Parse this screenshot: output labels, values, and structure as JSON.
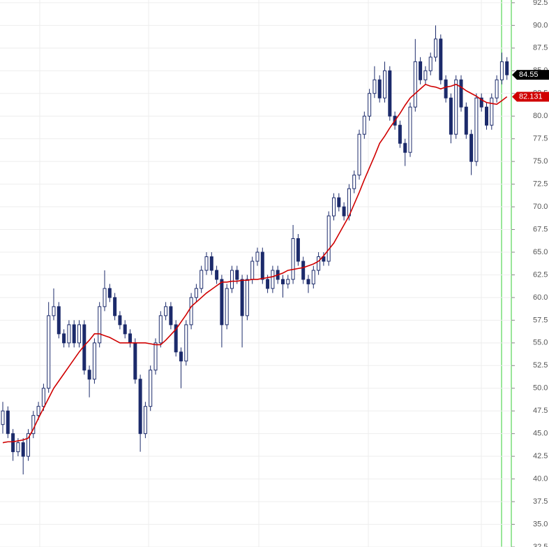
{
  "chart_data": {
    "type": "candlestick",
    "candle_color": "#1c2b6b",
    "open": [
      46,
      47.5,
      45,
      43,
      44,
      42.5,
      45,
      47,
      48,
      50,
      58,
      59,
      56,
      55,
      57,
      55,
      57,
      52,
      51,
      55,
      59,
      61,
      60,
      58,
      57,
      56,
      55,
      51,
      45,
      48,
      52,
      55,
      58,
      59,
      57,
      54,
      53,
      57,
      60,
      61,
      63,
      64.5,
      63,
      62,
      57,
      61,
      63,
      62,
      58,
      62,
      64,
      65,
      62,
      61,
      63,
      62,
      61.5,
      62,
      66.5,
      64,
      62,
      61.5,
      63,
      64.5,
      64,
      69,
      71,
      70,
      69,
      72,
      73.5,
      78,
      80,
      82.5,
      84,
      82,
      85,
      80,
      79,
      77,
      76,
      81,
      86,
      84,
      85,
      86.5,
      88.5,
      84,
      82,
      78,
      84,
      81,
      78,
      75,
      82,
      81,
      79,
      82,
      84,
      86
    ],
    "high": [
      48.5,
      48,
      45.5,
      44.5,
      44.5,
      45.5,
      47.5,
      48.5,
      50.5,
      59.5,
      61,
      59.5,
      56.5,
      57.5,
      57.5,
      57.5,
      57.5,
      52.5,
      55.5,
      59.5,
      63,
      61.5,
      60.5,
      58.5,
      57.5,
      56.5,
      55.5,
      51.5,
      48.5,
      52.5,
      55.5,
      58.5,
      59.5,
      59.5,
      57.5,
      54.5,
      57.5,
      60.5,
      61.5,
      63.5,
      65,
      65,
      63.5,
      62.5,
      61.5,
      63.5,
      63.5,
      62.5,
      62.5,
      64.5,
      65.5,
      65.5,
      62.5,
      63.5,
      63.5,
      62.5,
      62.5,
      68,
      67,
      64.5,
      62.5,
      63.5,
      65,
      65,
      69.5,
      71.5,
      71.5,
      70.5,
      72.5,
      74,
      78.5,
      80.5,
      83,
      85.5,
      84.5,
      86,
      85.5,
      80.5,
      79.5,
      77.5,
      81.5,
      88.5,
      86.5,
      85.5,
      87,
      90,
      89,
      84.5,
      82.5,
      84.5,
      84.5,
      81.5,
      78.5,
      82.5,
      82.5,
      81.5,
      82.5,
      84.5,
      87,
      86.5
    ],
    "low": [
      45,
      44.5,
      42,
      42.5,
      40.5,
      42,
      44.5,
      46.5,
      47.5,
      49.5,
      57.5,
      55.5,
      54.5,
      54.5,
      54.5,
      54.5,
      51.5,
      49,
      50.5,
      54.5,
      58.5,
      59.5,
      57.5,
      56.5,
      55.5,
      54.5,
      50.5,
      43,
      44.5,
      47.5,
      51.5,
      54.5,
      57.5,
      56.5,
      53.5,
      50,
      52.5,
      56.5,
      59.5,
      60.5,
      62.5,
      62.5,
      61.5,
      54.5,
      56.5,
      60.5,
      61.5,
      54.5,
      57.5,
      61.5,
      63.5,
      61.5,
      60.5,
      60.5,
      61.5,
      60,
      61,
      61.5,
      63.5,
      61.5,
      60.5,
      61,
      62.5,
      63.5,
      63.5,
      68.5,
      69.5,
      68.5,
      68.5,
      71.5,
      73,
      77.5,
      79.5,
      82,
      81.5,
      81.5,
      79.5,
      78.5,
      76.5,
      74.5,
      75.5,
      80.5,
      83.5,
      83.5,
      84.5,
      86,
      83.5,
      81.5,
      77,
      77.5,
      80.5,
      77.5,
      73.5,
      74.5,
      80.5,
      78.5,
      78.5,
      81.5,
      83.5,
      84
    ],
    "close": [
      47.5,
      45,
      43,
      44,
      42.5,
      45,
      47,
      48,
      50,
      58,
      59,
      56,
      55,
      57,
      55,
      57,
      52,
      51,
      55,
      59,
      61,
      60,
      58,
      57,
      56,
      55,
      51,
      45,
      48,
      52,
      55,
      58,
      59,
      57,
      54,
      53,
      57,
      60,
      61,
      63,
      64.5,
      63,
      62,
      57,
      61,
      63,
      62,
      58,
      62,
      64,
      65,
      62,
      61,
      63,
      62,
      61.5,
      62,
      66.5,
      64,
      62,
      61.5,
      63,
      64.5,
      64,
      69,
      71,
      70,
      69,
      72,
      73.5,
      78,
      80,
      82.5,
      84,
      82,
      85,
      80,
      79,
      77,
      76,
      81,
      86,
      84,
      85,
      86.5,
      88.5,
      84,
      82,
      78,
      84,
      81,
      78,
      75,
      82,
      81,
      79,
      82,
      84,
      86,
      84.55
    ],
    "ma": {
      "color": "#d00000",
      "values": [
        44,
        44.1,
        44.1,
        44.2,
        44.3,
        44.5,
        45.5,
        46.7,
        47.8,
        48.9,
        50,
        50.8,
        51.6,
        52.4,
        53.2,
        54,
        54.7,
        55.3,
        56,
        56,
        55.8,
        55.6,
        55.3,
        55,
        55,
        55,
        55,
        55,
        55,
        54.9,
        54.8,
        54.8,
        55.3,
        55.9,
        56.5,
        57.3,
        58.1,
        59,
        59.5,
        60,
        60.5,
        60.9,
        61.3,
        61.7,
        61.7,
        61.8,
        61.8,
        61.9,
        61.9,
        62,
        62,
        62.1,
        62.2,
        62.3,
        62.5,
        62.7,
        63,
        63.1,
        63.2,
        63.3,
        63.5,
        63.7,
        64,
        64.6,
        65.3,
        66,
        67,
        68,
        69,
        70.3,
        71.6,
        73,
        74.3,
        75.6,
        77,
        77.8,
        78.7,
        79.5,
        80.3,
        81.2,
        82,
        82.5,
        83,
        83.5,
        83.3,
        83.2,
        83,
        83.2,
        83.3,
        83.5,
        83.2,
        82.8,
        82.5,
        82.2,
        81.8,
        81.5,
        81.4,
        81.3,
        81.7,
        82.131
      ]
    },
    "price_labels": [
      {
        "value": 84.55,
        "label": "84.55",
        "color": "#000000"
      },
      {
        "value": 82.131,
        "label": "82.131",
        "color": "#d00000"
      }
    ],
    "ylim": [
      32.5,
      92.8
    ],
    "yticks": [
      {
        "value": 32.5,
        "label": "32.5"
      },
      {
        "value": 35,
        "label": "35.0"
      },
      37.5,
      {
        "value": 40,
        "label": "40.0"
      },
      42.5,
      {
        "value": 45,
        "label": "45.0"
      },
      47.5,
      {
        "value": 50,
        "label": "50.0"
      },
      52.5,
      {
        "value": 55,
        "label": "55.0"
      },
      57.5,
      {
        "value": 60,
        "label": "60.0"
      },
      62.5,
      {
        "value": 65,
        "label": "65.0"
      },
      67.5,
      {
        "value": 70,
        "label": "70.0"
      },
      72.5,
      {
        "value": 75,
        "label": "75.0"
      },
      77.5,
      {
        "value": 80,
        "label": "80.0"
      },
      82.5,
      {
        "value": 85,
        "label": "85.0"
      },
      87.5,
      {
        "value": 90,
        "label": "90.0"
      },
      92.5
    ],
    "grid": true
  }
}
